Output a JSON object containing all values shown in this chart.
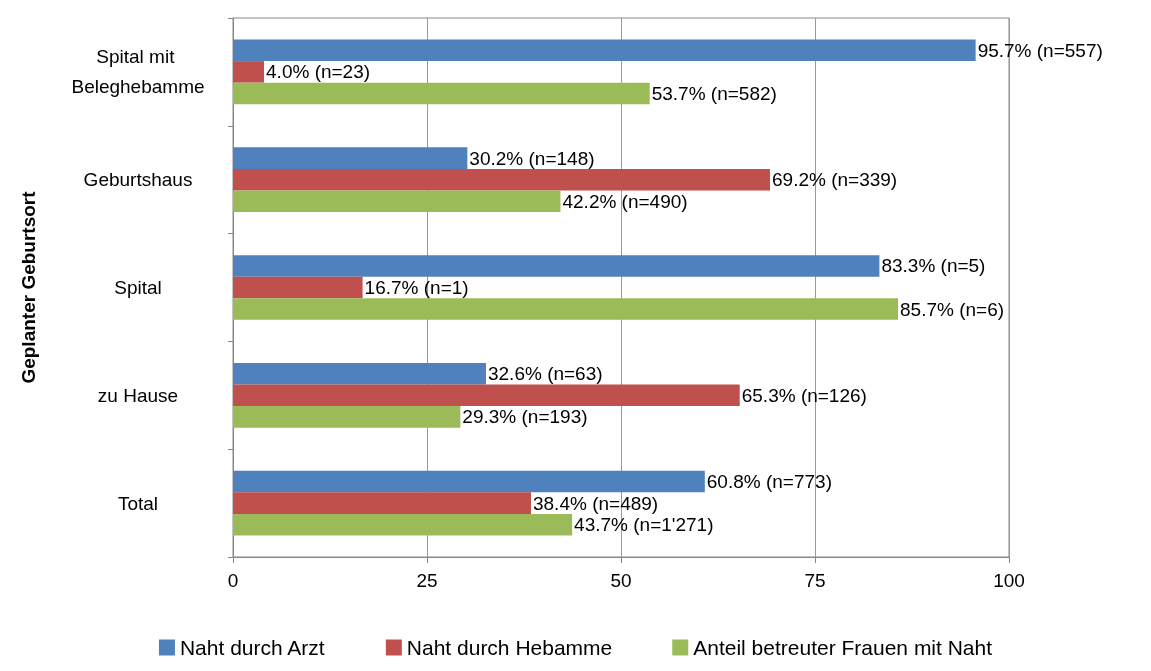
{
  "chart_data": {
    "type": "bar",
    "orientation": "horizontal",
    "ylabel": "Geplanter Geburtsort",
    "categories": [
      "Spital mit Beleghebamme",
      "Geburtshaus",
      "Spital",
      "zu Hause",
      "Total"
    ],
    "series": [
      {
        "name": "Naht durch Arzt",
        "color": "#4f81bd",
        "values": [
          95.7,
          30.2,
          83.3,
          32.6,
          60.8
        ],
        "value_labels": [
          "95.7% (n=557)",
          "30.2% (n=148)",
          "83.3% (n=5)",
          "32.6% (n=63)",
          "60.8% (n=773)"
        ]
      },
      {
        "name": "Naht durch Hebamme",
        "color": "#c0504d",
        "values": [
          4.0,
          69.2,
          16.7,
          65.3,
          38.4
        ],
        "value_labels": [
          "4.0% (n=23)",
          "69.2% (n=339)",
          "16.7% (n=1)",
          "65.3% (n=126)",
          "38.4% (n=489)"
        ]
      },
      {
        "name": "Anteil betreuter Frauen mit Naht",
        "color": "#9bbb59",
        "values": [
          53.7,
          42.2,
          85.7,
          29.3,
          43.7
        ],
        "value_labels": [
          "53.7% (n=582)",
          "42.2% (n=490)",
          "85.7% (n=6)",
          "29.3% (n=193)",
          "43.7% (n=1'271)"
        ]
      }
    ],
    "xlim": [
      0,
      100
    ],
    "xticks": [
      0,
      25,
      50,
      75,
      100
    ],
    "grid": "x",
    "legend": "bottom"
  }
}
